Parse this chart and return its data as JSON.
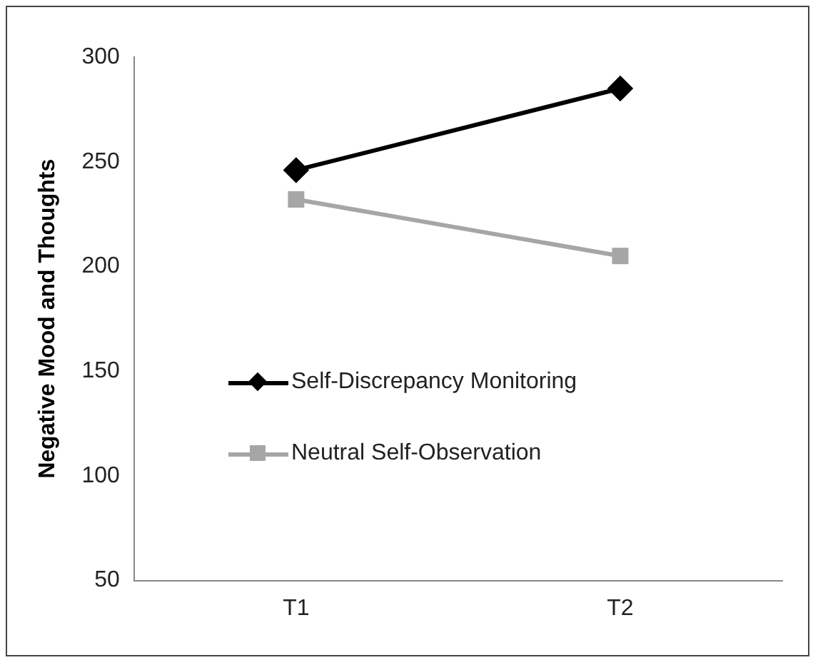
{
  "chart_data": {
    "type": "line",
    "ylabel": "Negative Mood and Thoughts",
    "categories": [
      "T1",
      "T2"
    ],
    "series": [
      {
        "name": "Self-Discrepancy Monitoring",
        "color": "#000000",
        "marker": "diamond",
        "values": [
          246,
          285
        ]
      },
      {
        "name": "Neutral Self-Observation",
        "color": "#a6a6a6",
        "marker": "square",
        "values": [
          232,
          205
        ]
      }
    ],
    "ylim": [
      50,
      300
    ],
    "yticks": [
      50,
      100,
      150,
      200,
      250,
      300
    ],
    "grid": false,
    "legend": "left",
    "line_style": "solid"
  }
}
